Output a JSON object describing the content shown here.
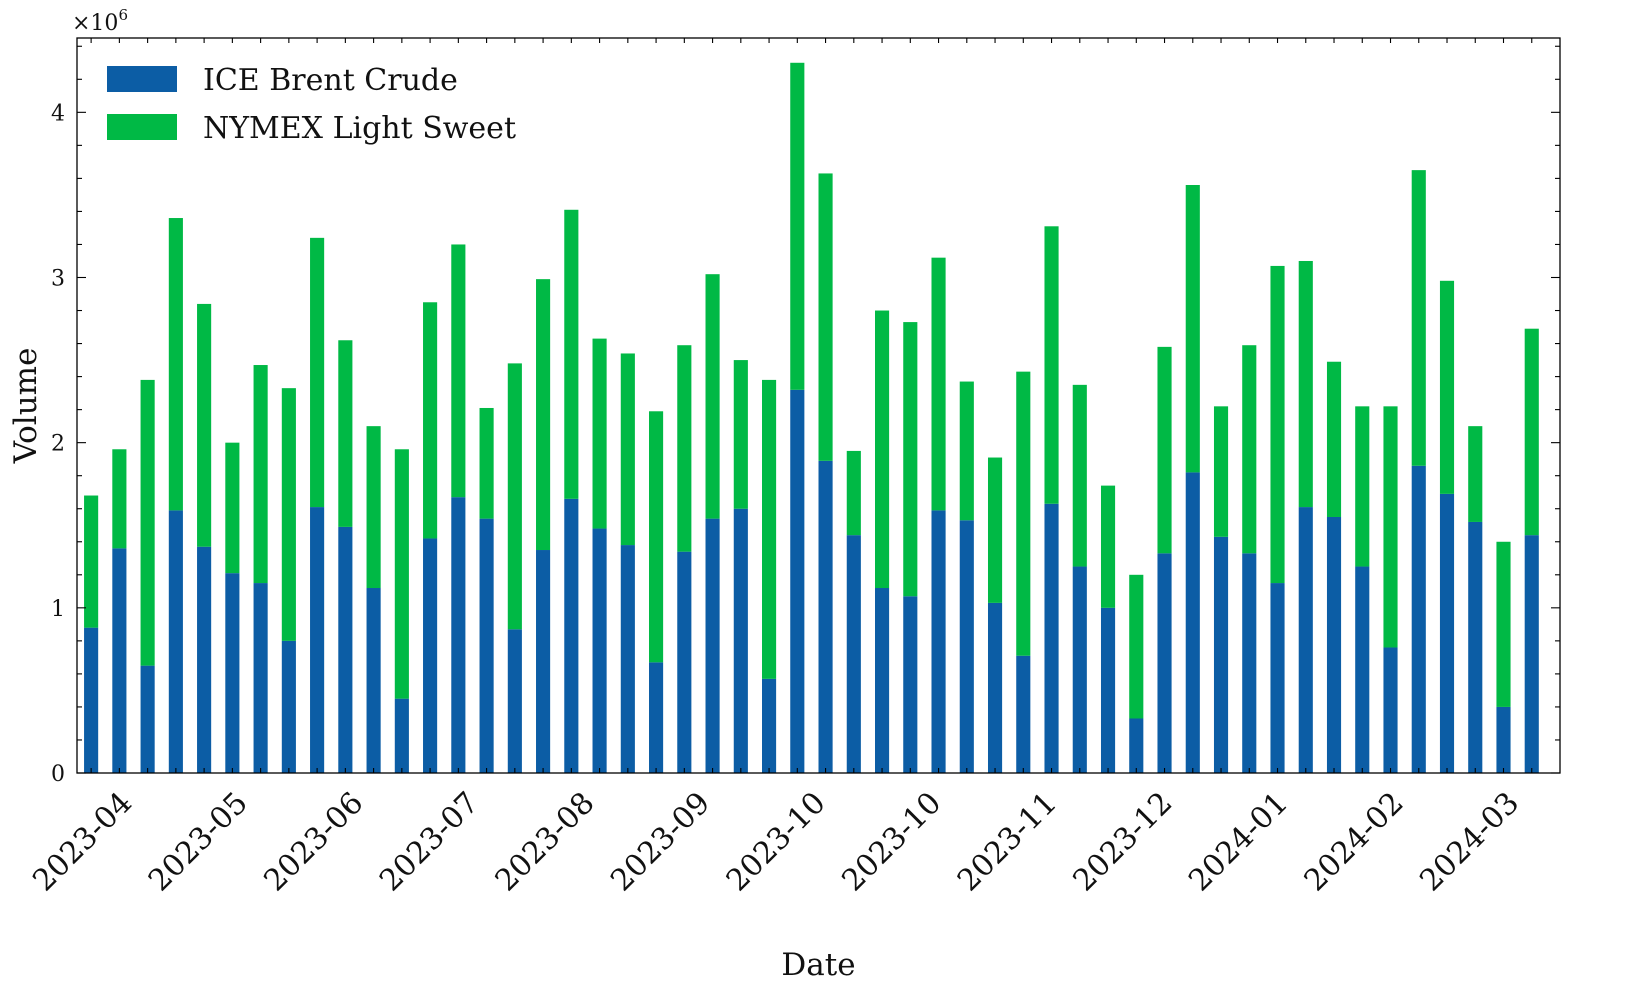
{
  "chart_data": {
    "type": "bar",
    "stacked": true,
    "xlabel": "Date",
    "ylabel": "Volume",
    "y_multiplier_label": "×10",
    "y_multiplier_exponent": "6",
    "ylim": [
      0,
      4.45
    ],
    "y_ticks": [
      0,
      1,
      2,
      3,
      4
    ],
    "x_tick_labels": [
      "2023-04",
      "2023-05",
      "2023-06",
      "2023-07",
      "2023-08",
      "2023-09",
      "2023-10",
      "2023-10",
      "2023-11",
      "2023-12",
      "2024-01",
      "2024-02",
      "2024-03"
    ],
    "legend_position": "top-left",
    "series": [
      {
        "name": "ICE Brent Crude",
        "color": "#0C5DA5",
        "values": [
          0.88,
          1.36,
          0.65,
          1.59,
          1.37,
          1.21,
          1.15,
          0.8,
          1.61,
          1.49,
          1.12,
          0.45,
          1.42,
          1.67,
          1.54,
          0.87,
          1.35,
          1.66,
          1.48,
          1.38,
          0.67,
          1.34,
          1.54,
          1.6,
          0.57,
          2.32,
          1.89,
          1.44,
          1.12,
          1.07,
          1.59,
          1.53,
          1.03,
          0.71,
          1.63,
          1.25,
          1.0,
          0.33,
          1.33,
          1.82,
          1.43,
          1.33,
          1.15,
          1.61,
          1.55,
          1.25,
          0.76,
          1.86,
          1.69,
          1.52,
          0.4,
          1.44
        ]
      },
      {
        "name": "NYMEX Light Sweet",
        "color": "#00B945",
        "values": [
          0.8,
          0.6,
          1.73,
          1.77,
          1.47,
          0.79,
          1.32,
          1.53,
          1.63,
          1.13,
          0.98,
          1.51,
          1.43,
          1.53,
          0.67,
          1.61,
          1.64,
          1.75,
          1.15,
          1.16,
          1.52,
          1.25,
          1.48,
          0.9,
          1.81,
          1.98,
          1.74,
          0.51,
          1.68,
          1.66,
          1.53,
          0.84,
          0.88,
          1.72,
          1.68,
          1.1,
          0.74,
          0.87,
          1.25,
          1.74,
          0.79,
          1.26,
          1.92,
          1.49,
          0.94,
          0.97,
          1.46,
          1.79,
          1.29,
          0.58,
          1.0,
          1.25
        ]
      }
    ]
  }
}
